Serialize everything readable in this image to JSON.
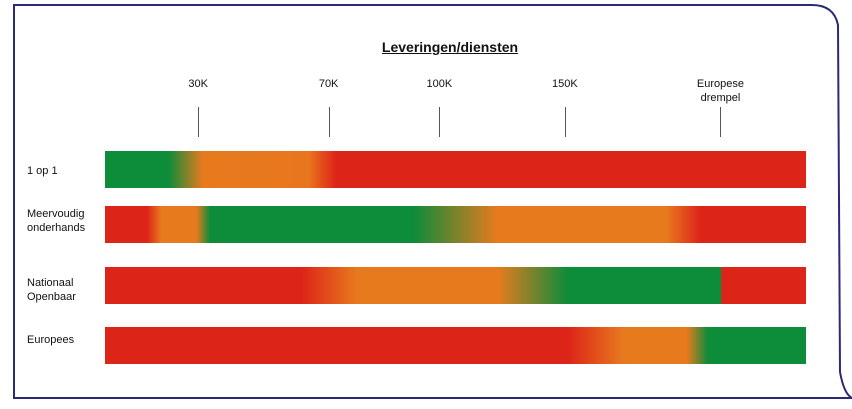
{
  "title": "Leveringen/diensten",
  "thresholds": [
    {
      "label": "30K",
      "position": 0.133
    },
    {
      "label": "70K",
      "position": 0.319
    },
    {
      "label": "100K",
      "position": 0.477
    },
    {
      "label": "150K",
      "position": 0.656
    },
    {
      "label": "Europese\ndrempel",
      "position": 0.878
    }
  ],
  "rows": [
    {
      "label": "1 op 1",
      "stops": [
        {
          "color": "#0d8c3a",
          "at": 0.0
        },
        {
          "color": "#0d8c3a",
          "at": 0.09
        },
        {
          "color": "#e87a1e",
          "at": 0.14
        },
        {
          "color": "#e8761e",
          "at": 0.29
        },
        {
          "color": "#dd2418",
          "at": 0.33
        },
        {
          "color": "#dd2418",
          "at": 1.0
        }
      ]
    },
    {
      "label": "Meervoudig\nonderhands",
      "stops": [
        {
          "color": "#dd2418",
          "at": 0.0
        },
        {
          "color": "#dd2418",
          "at": 0.06
        },
        {
          "color": "#e87a1e",
          "at": 0.08
        },
        {
          "color": "#e87a1e",
          "at": 0.13
        },
        {
          "color": "#0d8c3a",
          "at": 0.15
        },
        {
          "color": "#0d8c3a",
          "at": 0.44
        },
        {
          "color": "#e87a1e",
          "at": 0.56
        },
        {
          "color": "#e87a1e",
          "at": 0.8
        },
        {
          "color": "#dd2418",
          "at": 0.85
        },
        {
          "color": "#dd2418",
          "at": 1.0
        }
      ]
    },
    {
      "label": "Nationaal\nOpenbaar",
      "stops": [
        {
          "color": "#dd2418",
          "at": 0.0
        },
        {
          "color": "#dd2418",
          "at": 0.28
        },
        {
          "color": "#e87a1e",
          "at": 0.36
        },
        {
          "color": "#e87a1e",
          "at": 0.56
        },
        {
          "color": "#0d8c3a",
          "at": 0.66
        },
        {
          "color": "#0d8c3a",
          "at": 0.878
        },
        {
          "color": "#dd2418",
          "at": 0.88
        },
        {
          "color": "#dd2418",
          "at": 1.0
        }
      ]
    },
    {
      "label": "Europees",
      "stops": [
        {
          "color": "#dd2418",
          "at": 0.0
        },
        {
          "color": "#dd2418",
          "at": 0.66
        },
        {
          "color": "#e87a1e",
          "at": 0.74
        },
        {
          "color": "#e87a1e",
          "at": 0.83
        },
        {
          "color": "#0d8c3a",
          "at": 0.86
        },
        {
          "color": "#0d8c3a",
          "at": 1.0
        }
      ]
    }
  ],
  "colors": {
    "green": "#0d8c3a",
    "orange": "#e87a1e",
    "red": "#dd2418",
    "frame": "#2b2a78"
  }
}
